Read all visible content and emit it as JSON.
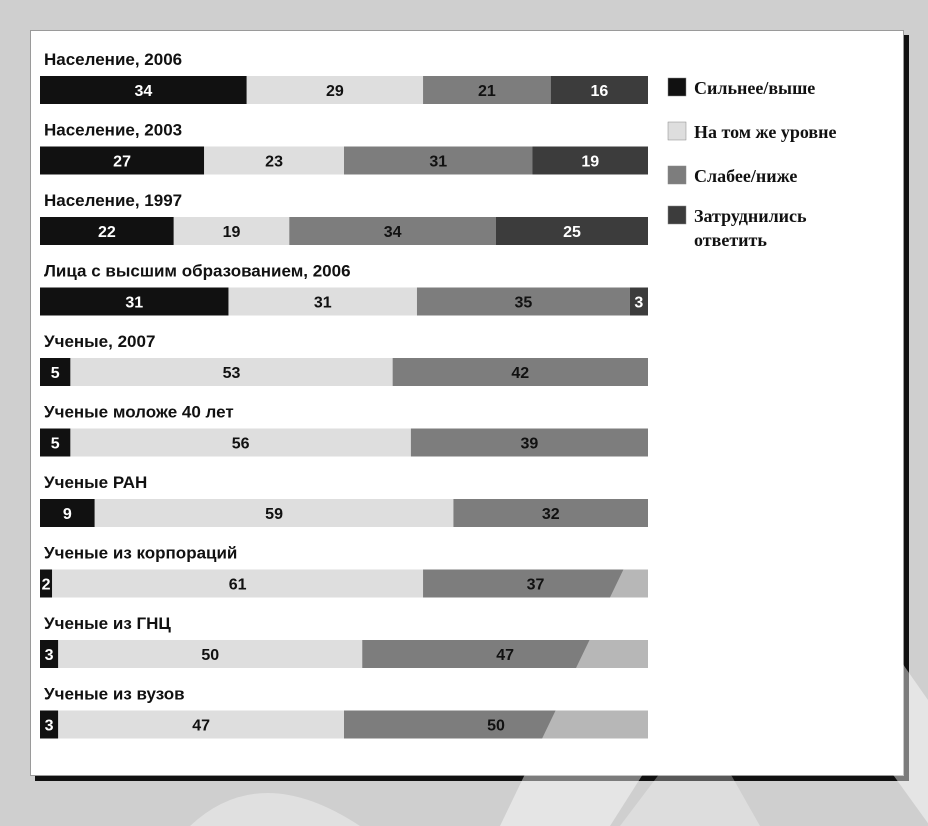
{
  "chart_data": {
    "type": "bar",
    "orientation": "horizontal-stacked-100",
    "categories": [
      "Население, 2006",
      "Население, 2003",
      "Население, 1997",
      "Лица с высшим образованием, 2006",
      "Ученые, 2007",
      "Ученые моложе 40 лет",
      "Ученые РАН",
      "Ученые из корпораций",
      "Ученые из ГНЦ",
      "Ученые из вузов"
    ],
    "series": [
      {
        "name": "Сильнее/выше",
        "color": "#111111",
        "text_color": "#ffffff",
        "values": [
          34,
          27,
          22,
          31,
          5,
          5,
          9,
          2,
          3,
          3
        ]
      },
      {
        "name": "На том же уровне",
        "color": "#dedede",
        "text_color": "#111111",
        "values": [
          29,
          23,
          19,
          31,
          53,
          56,
          59,
          61,
          50,
          47
        ]
      },
      {
        "name": "Слабее/ниже",
        "color": "#7d7d7d",
        "text_color": "#111111",
        "values": [
          21,
          31,
          34,
          35,
          42,
          39,
          32,
          37,
          47,
          50
        ]
      },
      {
        "name": "Затруднились ответить",
        "color": "#3c3c3c",
        "text_color": "#ffffff",
        "values": [
          16,
          19,
          25,
          3,
          0,
          0,
          0,
          0,
          0,
          0
        ]
      }
    ],
    "legend_labels": [
      [
        "Сильнее/выше"
      ],
      [
        "На том же уровне"
      ],
      [
        "Слабее/ниже"
      ],
      [
        "Затруднились",
        "ответить"
      ]
    ],
    "xlim": [
      0,
      100
    ],
    "legend_position": "right",
    "grid": false
  }
}
